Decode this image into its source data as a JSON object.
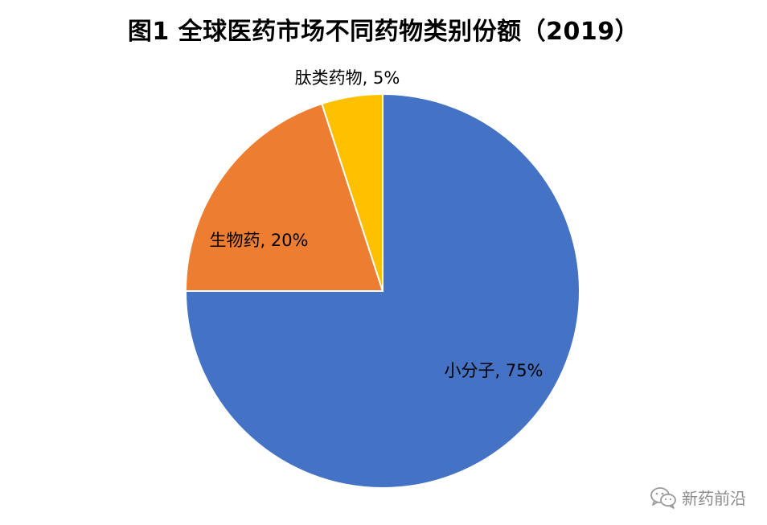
{
  "chart_data": {
    "type": "pie",
    "title": "图1 全球医药市场不同药物类别份额（2019）",
    "start_angle_deg": 0,
    "direction": "clockwise",
    "slices": [
      {
        "name": "小分子",
        "value": 75,
        "label": "小分子, 75%",
        "color": "#4472C4"
      },
      {
        "name": "生物药",
        "value": 20,
        "label": "生物药, 20%",
        "color": "#ED7D31"
      },
      {
        "name": "肽类药物",
        "value": 5,
        "label": "肽类药物, 5%",
        "color": "#FFC000"
      }
    ],
    "legend": "none"
  },
  "watermark": {
    "icon": "wechat-icon",
    "text": "新药前沿"
  }
}
